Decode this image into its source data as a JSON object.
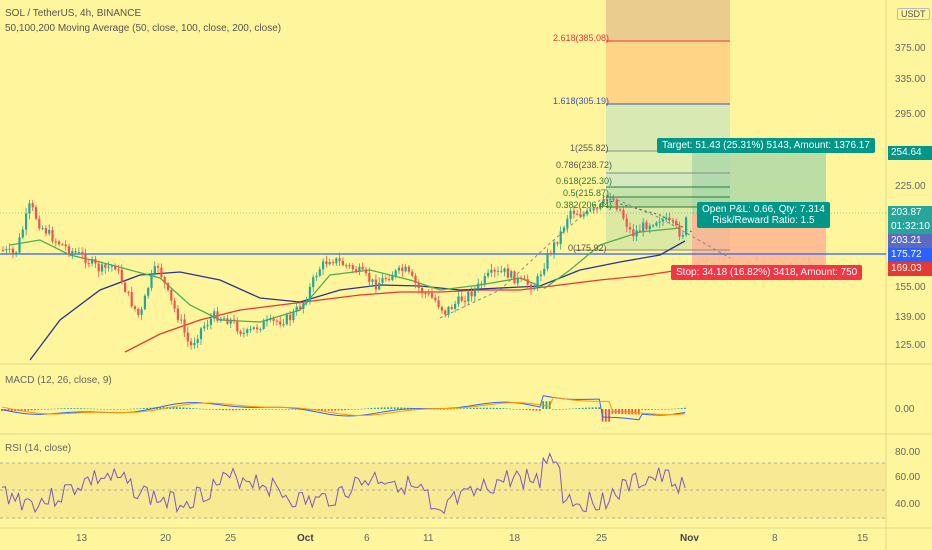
{
  "header": {
    "title": "SOL / TetherUS, 4h, BINANCE",
    "subtitle": "50,100,200 Moving Average (50, close, 100, close, 200, close)"
  },
  "currency": "USDT",
  "price_axis": [
    "375.00",
    "335.00",
    "295.00",
    "225.00",
    "155.00",
    "139.00",
    "125.00"
  ],
  "price_tags": {
    "target": "254.64",
    "last": "203.87",
    "countdown": "01:32:10",
    "ma_a": "203.21",
    "ma_b": "175.72",
    "stop": "169.03"
  },
  "fib_levels": [
    {
      "label": "2.618(385.08)",
      "color": "#E53935"
    },
    {
      "label": "1.618(305.19)",
      "color": "#3F51B5"
    },
    {
      "label": "1(255.82)",
      "color": "#666666"
    },
    {
      "label": "0.786(238.72)",
      "color": "#666666"
    },
    {
      "label": "0.618(225.30)",
      "color": "#2E7D32"
    },
    {
      "label": "0.5(215.87)",
      "color": "#2E7D32"
    },
    {
      "label": "0.382(206.44)",
      "color": "#2E7D32"
    },
    {
      "label": "0(175.92)",
      "color": "#666666"
    }
  ],
  "position": {
    "target_text": "Target: 51.43 (25.31%) 5143, Amount: 1376.17",
    "pnl_text": "Open P&L: 0.66, Qty: 7.314",
    "rr_text": "Risk/Reward Ratio: 1.5",
    "stop_text": "Stop: 34.18 (16.82%) 3418, Amount: 750"
  },
  "macd": {
    "label": "MACD (12, 26, close, 9)",
    "axis": [
      "0.00"
    ]
  },
  "rsi": {
    "label": "RSI (14, close)",
    "axis": [
      "80.00",
      "60.00",
      "40.00"
    ]
  },
  "time_axis": [
    "13",
    "20",
    "25",
    "Oct",
    "6",
    "11",
    "18",
    "25",
    "Nov",
    "8",
    "15"
  ],
  "colors": {
    "background": "#FFF59D",
    "ma_green": "#4CAF50",
    "ma_navy": "#283593",
    "ma_red": "#E53935",
    "candle_up": "#26A69A",
    "candle_down": "#EF5350",
    "target_zone": "#A5D6A7",
    "stop_zone": "#FFAB91",
    "target_box": "#009688",
    "stop_box": "#F23645",
    "blue_line": "#2962FF"
  }
}
